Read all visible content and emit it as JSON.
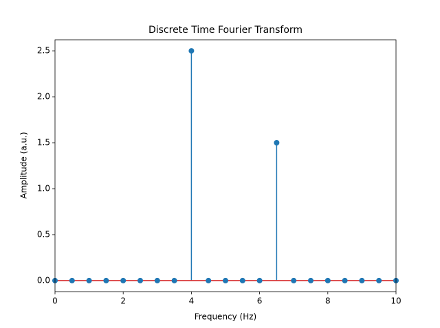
{
  "chart_data": {
    "type": "stem",
    "title": "Discrete Time Fourier Transform",
    "x_label": "Frequency (Hz)",
    "y_label": "Amplitude (a.u.)",
    "x": [
      0,
      0.5,
      1,
      1.5,
      2,
      2.5,
      3,
      3.5,
      4,
      4.5,
      5,
      5.5,
      6,
      6.5,
      7,
      7.5,
      8,
      8.5,
      9,
      9.5,
      10
    ],
    "values": [
      0,
      0,
      0,
      0,
      0,
      0,
      0,
      0,
      2.5,
      0,
      0,
      0,
      0,
      1.5,
      0,
      0,
      0,
      0,
      0,
      0,
      0
    ],
    "color": "#1f77b4",
    "baseline_color": "#d62728",
    "xlim": [
      0,
      10
    ],
    "xticks": [
      0,
      2,
      4,
      6,
      8,
      10
    ],
    "ylim": [
      -0.12,
      2.62
    ],
    "yticks": [
      {
        "value": 0,
        "label": "0.0"
      },
      {
        "value": 0.5,
        "label": "0.5"
      },
      {
        "value": 1,
        "label": "1.0"
      },
      {
        "value": 1.5,
        "label": "1.5"
      },
      {
        "value": 2,
        "label": "2.0"
      },
      {
        "value": 2.5,
        "label": "2.5"
      }
    ],
    "grid": false
  }
}
